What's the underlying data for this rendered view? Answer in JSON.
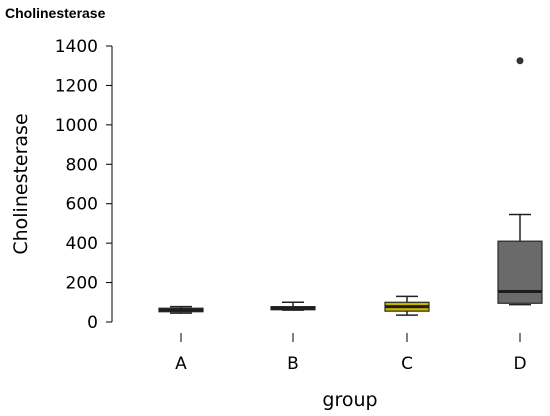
{
  "chart_data": {
    "type": "box",
    "title": "Cholinesterase",
    "xlabel": "group",
    "ylabel": "Cholinesterase",
    "ylim": [
      0,
      1400
    ],
    "yticks": [
      "0",
      "200",
      "400",
      "600",
      "800",
      "1000",
      "1200",
      "1400"
    ],
    "categories": [
      "A",
      "B",
      "C",
      "D"
    ],
    "boxes": [
      {
        "category": "A",
        "min": 45,
        "q1": 52,
        "median": 60,
        "q3": 70,
        "max": 78,
        "outliers": [],
        "color": "#454545"
      },
      {
        "category": "B",
        "min": 60,
        "q1": 62,
        "median": 70,
        "q3": 78,
        "max": 100,
        "outliers": [],
        "color": "#5f5f5f"
      },
      {
        "category": "C",
        "min": 35,
        "q1": 55,
        "median": 78,
        "q3": 100,
        "max": 130,
        "outliers": [],
        "color": "#c8b400"
      },
      {
        "category": "D",
        "min": 88,
        "q1": 95,
        "median": 155,
        "q3": 410,
        "max": 545,
        "outliers": [
          1325
        ],
        "color": "#6a6a6a"
      }
    ],
    "grid": false,
    "legend": "none"
  }
}
